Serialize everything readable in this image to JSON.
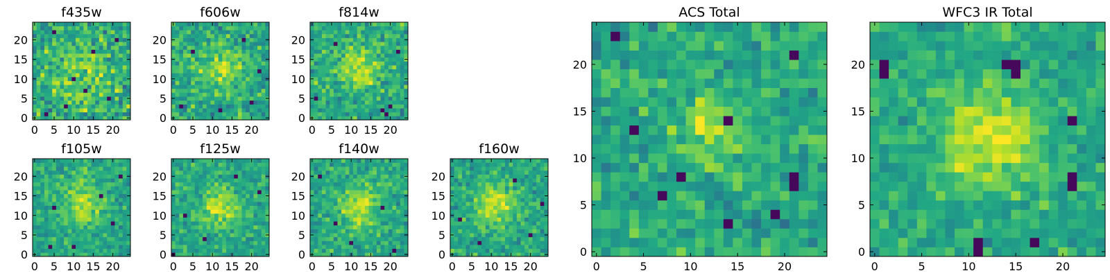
{
  "figure": {
    "panels": [
      {
        "title": "f435w",
        "xticks": [
          "0",
          "5",
          "10",
          "15",
          "20"
        ],
        "yticks": [
          "0",
          "5",
          "10",
          "15",
          "20"
        ]
      },
      {
        "title": "f606w",
        "xticks": [
          "0",
          "5",
          "10",
          "15",
          "20"
        ],
        "yticks": [
          "0",
          "5",
          "10",
          "15",
          "20"
        ]
      },
      {
        "title": "f814w",
        "xticks": [
          "0",
          "5",
          "10",
          "15",
          "20"
        ],
        "yticks": [
          "0",
          "5",
          "10",
          "15",
          "20"
        ]
      },
      {
        "title": "f105w",
        "xticks": [
          "0",
          "5",
          "10",
          "15",
          "20"
        ],
        "yticks": [
          "0",
          "5",
          "10",
          "15",
          "20"
        ]
      },
      {
        "title": "f125w",
        "xticks": [
          "0",
          "5",
          "10",
          "15",
          "20"
        ],
        "yticks": [
          "0",
          "5",
          "10",
          "15",
          "20"
        ]
      },
      {
        "title": "f140w",
        "xticks": [
          "0",
          "5",
          "10",
          "15",
          "20"
        ],
        "yticks": [
          "0",
          "5",
          "10",
          "15",
          "20"
        ]
      },
      {
        "title": "f160w",
        "xticks": [
          "0",
          "5",
          "10",
          "15",
          "20"
        ],
        "yticks": [
          "0",
          "5",
          "10",
          "15",
          "20"
        ]
      },
      {
        "title": "ACS Total",
        "xticks": [
          "0",
          "5",
          "10",
          "15",
          "20"
        ],
        "yticks": [
          "0",
          "5",
          "10",
          "15",
          "20"
        ]
      },
      {
        "title": "WFC3 IR Total",
        "xticks": [
          "0",
          "5",
          "10",
          "15",
          "20"
        ],
        "yticks": [
          "0",
          "5",
          "10",
          "15",
          "20"
        ]
      }
    ]
  },
  "chart_data": [
    {
      "type": "heatmap",
      "title": "f435w",
      "grid_size": [
        25,
        25
      ],
      "xlim": [
        -0.5,
        24.5
      ],
      "ylim": [
        -0.5,
        24.5
      ],
      "origin": "lower",
      "colormap": "viridis",
      "peak": [
        12,
        11,
        0.3,
        6
      ],
      "noise": 0.72,
      "dark_pixels": [
        [
          3,
          1
        ],
        [
          8,
          3
        ],
        [
          19,
          5
        ],
        [
          10,
          10
        ],
        [
          15,
          17
        ],
        [
          21,
          20
        ],
        [
          5,
          22
        ],
        [
          13,
          7
        ]
      ]
    },
    {
      "type": "heatmap",
      "title": "f606w",
      "grid_size": [
        25,
        25
      ],
      "xlim": [
        -0.5,
        24.5
      ],
      "ylim": [
        -0.5,
        24.5
      ],
      "origin": "lower",
      "colormap": "viridis",
      "peak": [
        12,
        13,
        0.45,
        4
      ],
      "noise": 0.6,
      "dark_pixels": [
        [
          2,
          3
        ],
        [
          12,
          2
        ],
        [
          20,
          4
        ],
        [
          5,
          17
        ],
        [
          18,
          20
        ],
        [
          22,
          12
        ]
      ]
    },
    {
      "type": "heatmap",
      "title": "f814w",
      "grid_size": [
        25,
        25
      ],
      "xlim": [
        -0.5,
        24.5
      ],
      "ylim": [
        -0.5,
        24.5
      ],
      "origin": "lower",
      "colormap": "viridis",
      "peak": [
        12,
        13,
        0.5,
        4
      ],
      "noise": 0.6,
      "dark_pixels": [
        [
          19,
          1
        ],
        [
          20,
          3
        ],
        [
          18,
          2
        ],
        [
          6,
          19
        ],
        [
          22,
          17
        ],
        [
          1,
          5
        ]
      ]
    },
    {
      "type": "heatmap",
      "title": "f105w",
      "grid_size": [
        25,
        25
      ],
      "xlim": [
        -0.5,
        24.5
      ],
      "ylim": [
        -0.5,
        24.5
      ],
      "origin": "lower",
      "colormap": "viridis",
      "peak": [
        12,
        13,
        0.55,
        3.5
      ],
      "noise": 0.5,
      "dark_pixels": [
        [
          10,
          2
        ],
        [
          5,
          12
        ],
        [
          20,
          8
        ],
        [
          17,
          15
        ],
        [
          4,
          2
        ],
        [
          22,
          20
        ]
      ]
    },
    {
      "type": "heatmap",
      "title": "f125w",
      "grid_size": [
        25,
        25
      ],
      "xlim": [
        -0.5,
        24.5
      ],
      "ylim": [
        -0.5,
        24.5
      ],
      "origin": "lower",
      "colormap": "viridis",
      "peak": [
        12,
        12,
        0.55,
        3.5
      ],
      "noise": 0.5,
      "dark_pixels": [
        [
          0,
          0
        ],
        [
          8,
          4
        ],
        [
          22,
          16
        ],
        [
          16,
          20
        ],
        [
          3,
          10
        ]
      ]
    },
    {
      "type": "heatmap",
      "title": "f140w",
      "grid_size": [
        25,
        25
      ],
      "xlim": [
        -0.5,
        24.5
      ],
      "ylim": [
        -0.5,
        24.5
      ],
      "origin": "lower",
      "colormap": "viridis",
      "peak": [
        12,
        12,
        0.55,
        3.5
      ],
      "noise": 0.5,
      "dark_pixels": [
        [
          10,
          3
        ],
        [
          18,
          12
        ],
        [
          6,
          8
        ],
        [
          21,
          1
        ],
        [
          2,
          20
        ]
      ]
    },
    {
      "type": "heatmap",
      "title": "f160w",
      "grid_size": [
        25,
        25
      ],
      "xlim": [
        -0.5,
        24.5
      ],
      "ylim": [
        -0.5,
        24.5
      ],
      "origin": "lower",
      "colormap": "viridis",
      "peak": [
        11,
        13,
        0.6,
        3.5
      ],
      "noise": 0.5,
      "dark_pixels": [
        [
          7,
          3
        ],
        [
          20,
          5
        ],
        [
          2,
          9
        ],
        [
          16,
          19
        ],
        [
          23,
          13
        ]
      ]
    },
    {
      "type": "heatmap",
      "title": "ACS Total",
      "grid_size": [
        25,
        25
      ],
      "xlim": [
        -0.5,
        24.5
      ],
      "ylim": [
        -0.5,
        24.5
      ],
      "origin": "lower",
      "colormap": "viridis",
      "peak": [
        12,
        13,
        0.4,
        3
      ],
      "noise": 0.5,
      "dark_pixels": [
        [
          2,
          23
        ],
        [
          4,
          13
        ],
        [
          9,
          8
        ],
        [
          14,
          14
        ],
        [
          21,
          21
        ],
        [
          21,
          8
        ],
        [
          21,
          7
        ],
        [
          19,
          4
        ],
        [
          14,
          3
        ],
        [
          7,
          6
        ]
      ]
    },
    {
      "type": "heatmap",
      "title": "WFC3 IR Total",
      "grid_size": [
        25,
        25
      ],
      "xlim": [
        -0.5,
        24.5
      ],
      "ylim": [
        -0.5,
        24.5
      ],
      "origin": "lower",
      "colormap": "viridis",
      "peak": [
        12,
        12,
        0.65,
        3.5
      ],
      "noise": 0.45,
      "dark_pixels": [
        [
          11,
          1
        ],
        [
          11,
          0
        ],
        [
          17,
          1
        ],
        [
          21,
          7
        ],
        [
          21,
          8
        ],
        [
          21,
          14
        ],
        [
          1,
          19
        ],
        [
          1,
          20
        ],
        [
          14,
          20
        ],
        [
          15,
          19
        ],
        [
          15,
          20
        ]
      ]
    }
  ]
}
